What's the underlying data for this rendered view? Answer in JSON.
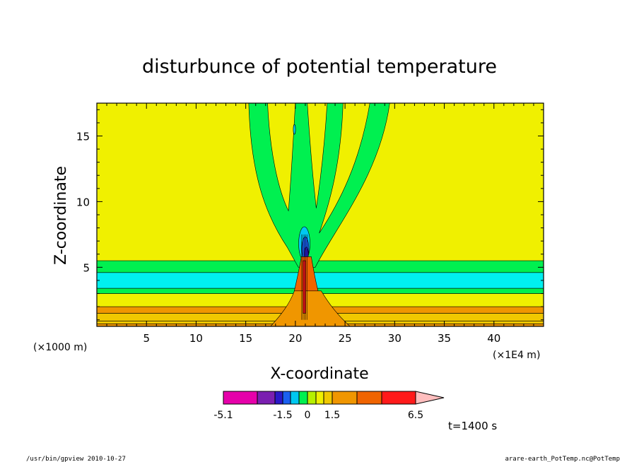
{
  "chart_data": {
    "type": "heatmap",
    "title": "disturbunce of potential temperature",
    "xlabel": "X-coordinate",
    "ylabel": "Z-coordinate",
    "x_scale_label": "(×1E4 m)",
    "z_scale_label": "(×1000 m)",
    "xlim": [
      0,
      45
    ],
    "ylim": [
      0.5,
      17.5
    ],
    "x_ticks": [
      "5",
      "10",
      "15",
      "20",
      "25",
      "30",
      "35",
      "40"
    ],
    "x_tick_values": [
      5,
      10,
      15,
      20,
      25,
      30,
      35,
      40
    ],
    "y_ticks": [
      "5",
      "10",
      "15"
    ],
    "y_tick_values": [
      5,
      10,
      15
    ],
    "time_label": "t=1400 s",
    "colorbar": {
      "colors": [
        "#e600aa",
        "#7a1fb0",
        "#2a18c8",
        "#1a60f0",
        "#00c8f0",
        "#00f050",
        "#b6f000",
        "#f0f000",
        "#f0c800",
        "#f09600",
        "#f06400",
        "#ff1a1a",
        "#ff7878",
        "#ffbebe"
      ],
      "level_labels": [
        "-5.1",
        "-1.5",
        "0",
        "1.5",
        "6.5"
      ],
      "level_values": [
        -5.1,
        -1.5,
        0,
        1.5,
        6.5
      ],
      "background_color": "#f0f000"
    },
    "bands": [
      {
        "z_min": 0.5,
        "z_max": 0.7,
        "color": "#f09600"
      },
      {
        "z_min": 0.7,
        "z_max": 0.9,
        "color": "#f0c800"
      },
      {
        "z_min": 0.9,
        "z_max": 1.5,
        "color": "#f0c800"
      },
      {
        "z_min": 1.5,
        "z_max": 2.0,
        "color": "#f09600"
      },
      {
        "z_min": 2.0,
        "z_max": 3.0,
        "color": "#f0f000"
      },
      {
        "z_min": 3.0,
        "z_max": 3.4,
        "color": "#00f050"
      },
      {
        "z_min": 3.4,
        "z_max": 4.6,
        "color": "#00f0f0"
      },
      {
        "z_min": 4.6,
        "z_max": 5.5,
        "color": "#00f050"
      }
    ]
  },
  "footer": {
    "left": "/usr/bin/gpview   2010-10-27",
    "right": "arare-earth_PotTemp.nc@PotTemp"
  }
}
